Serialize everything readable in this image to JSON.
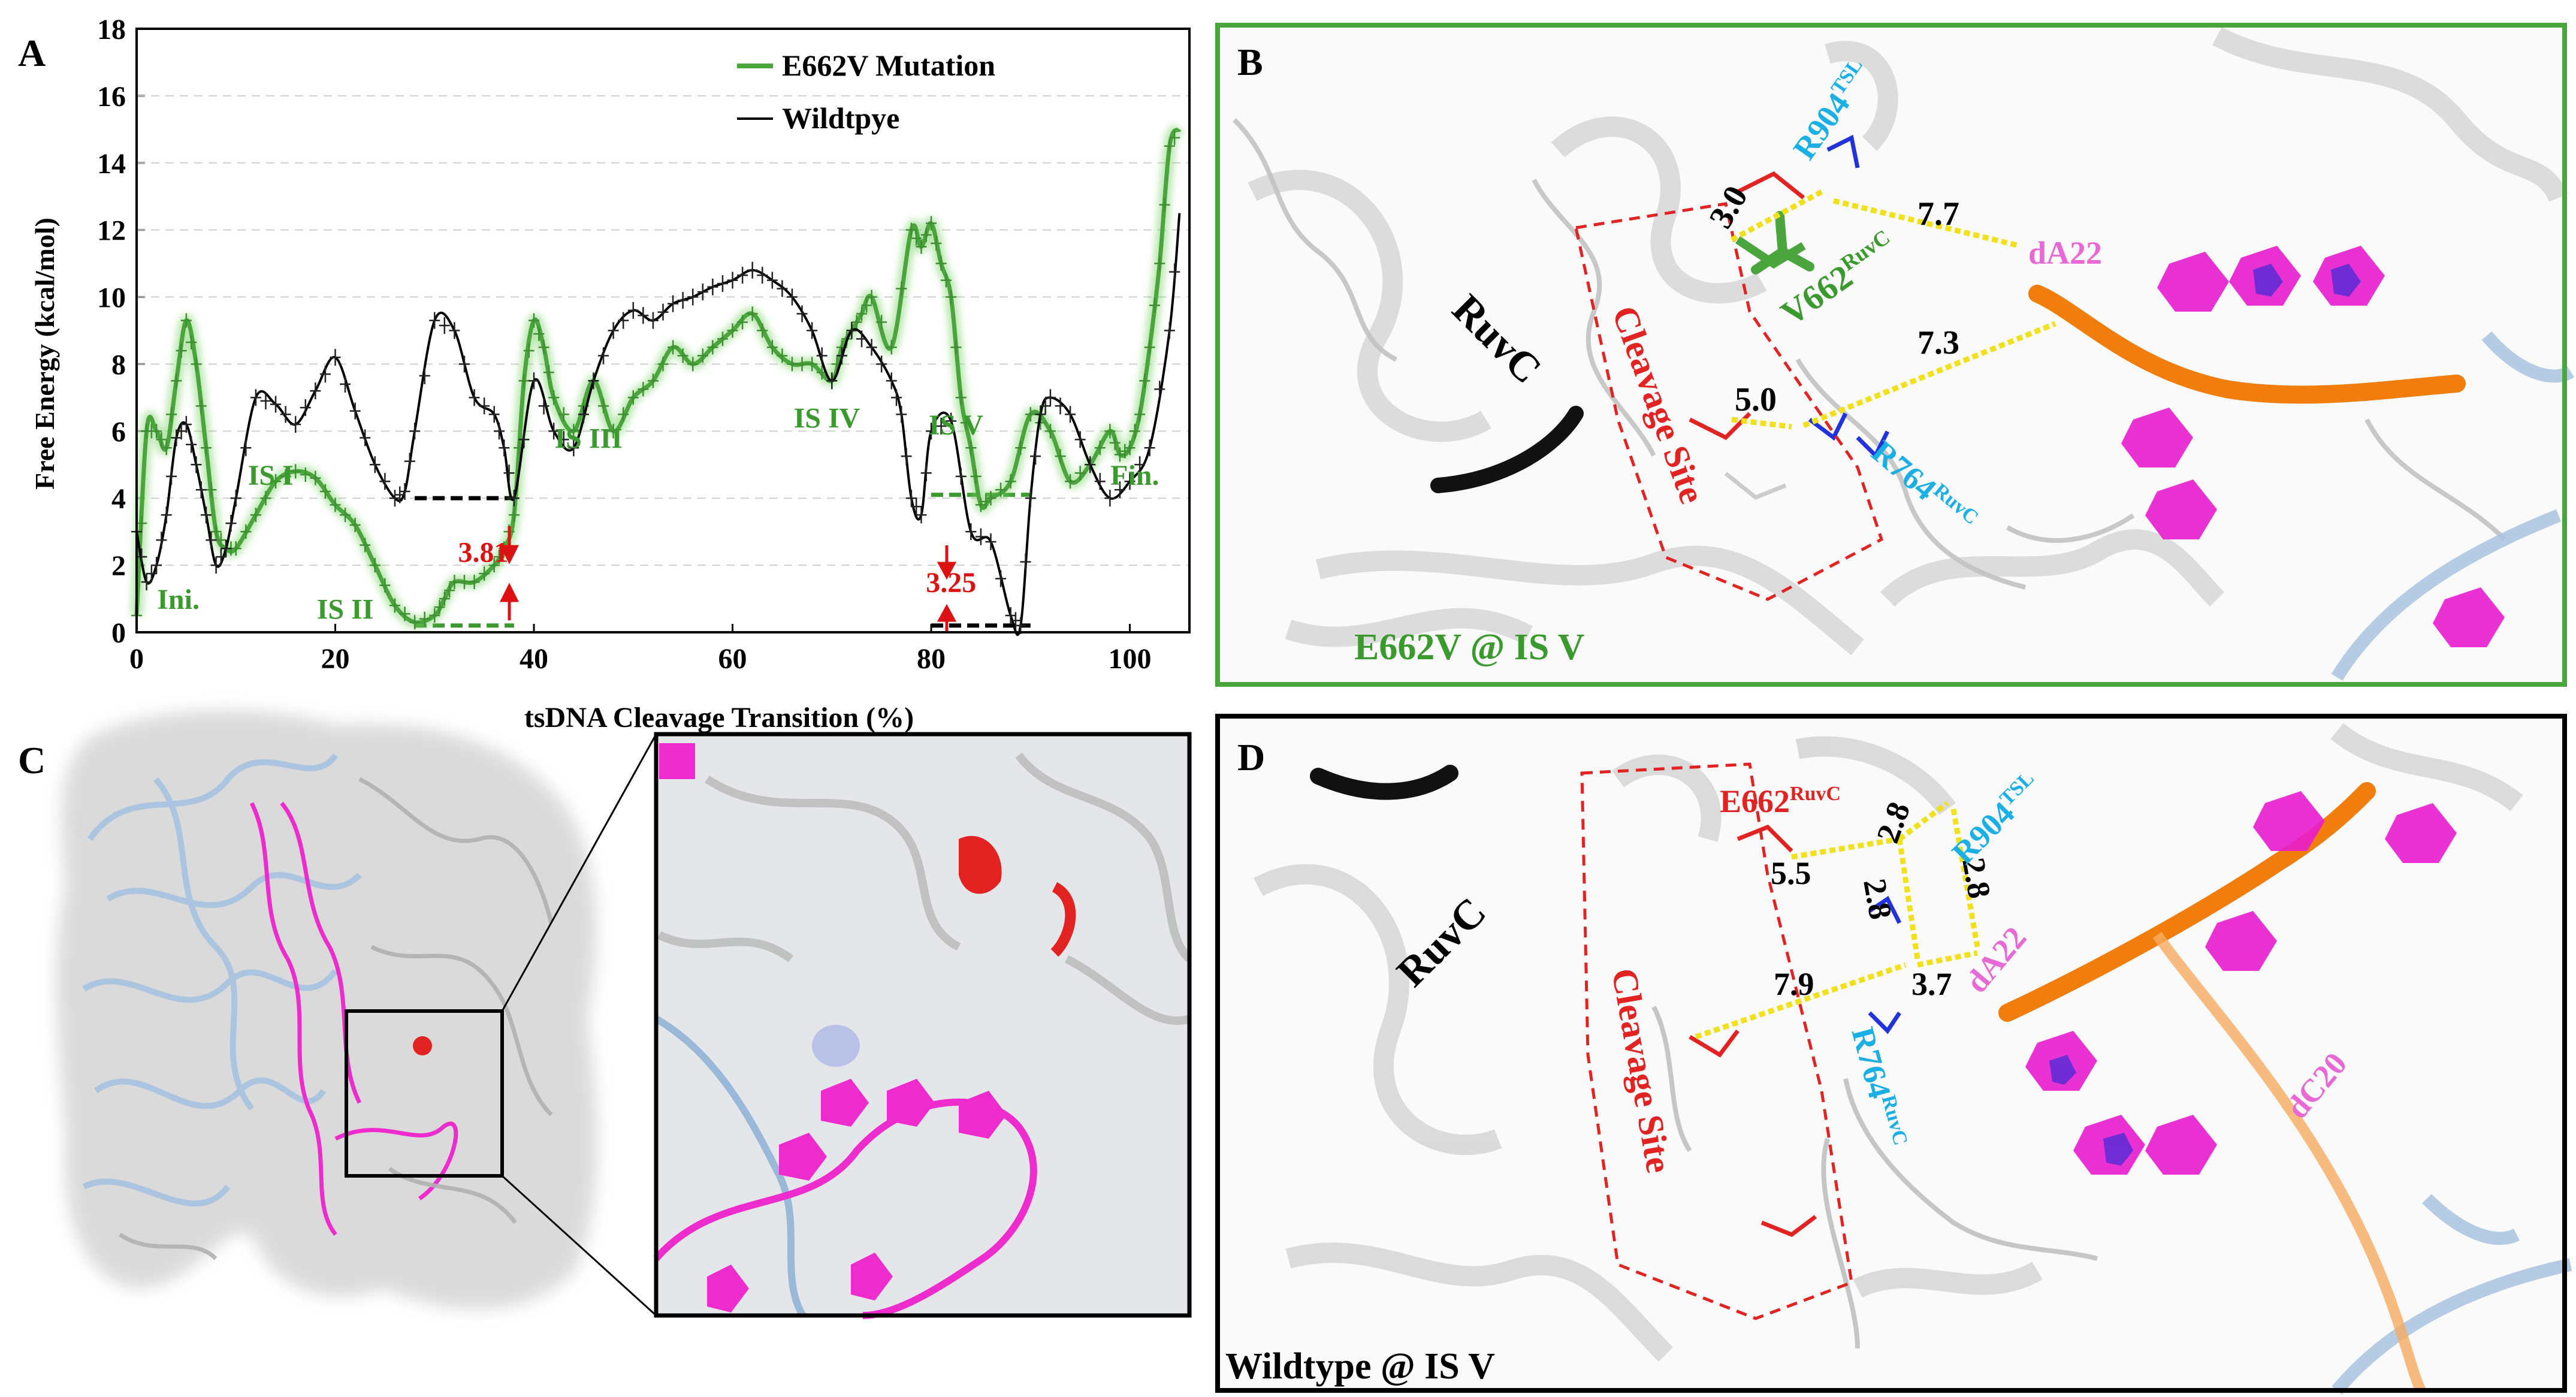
{
  "panel_labels": {
    "a": "A",
    "b": "B",
    "c": "C",
    "d": "D"
  },
  "chart_data": {
    "type": "line",
    "title": "",
    "xlabel": "tsDNA Cleavage Transition (%)",
    "ylabel": "Free Energy (kcal/mol)",
    "xlim": [
      0,
      106
    ],
    "ylim": [
      0,
      18
    ],
    "x_ticks": [
      0,
      20,
      40,
      60,
      80,
      100
    ],
    "y_ticks": [
      0,
      2,
      4,
      6,
      8,
      10,
      12,
      14,
      16,
      18
    ],
    "grid": "horizontal dashed",
    "legend_position": "top-right",
    "series": [
      {
        "name": "E662V Mutation",
        "color": "#4aa63c",
        "x": [
          0,
          1,
          2,
          3,
          4,
          5,
          6,
          7,
          8,
          9,
          10,
          12,
          14,
          16,
          18,
          20,
          22,
          24,
          26,
          28,
          30,
          31,
          32,
          34,
          36,
          37,
          38,
          39,
          40,
          41,
          42,
          44,
          46,
          48,
          50,
          52,
          54,
          56,
          58,
          60,
          62,
          64,
          66,
          68,
          70,
          71,
          72,
          73,
          74,
          76,
          78,
          79,
          80,
          81,
          82,
          83,
          84,
          85,
          86,
          88,
          90,
          92,
          94,
          96,
          98,
          99,
          100,
          101,
          102,
          103,
          104,
          105
        ],
        "values": [
          0.5,
          6,
          6,
          5.5,
          7.5,
          9.3,
          8,
          5.5,
          3,
          2.5,
          2.5,
          3.5,
          4.5,
          4.8,
          4.6,
          3.8,
          3.2,
          2,
          0.8,
          0.3,
          0.5,
          1,
          1.5,
          1.5,
          2,
          2.5,
          3.5,
          7.5,
          9.3,
          8.5,
          7,
          6,
          7.5,
          6,
          7,
          7.5,
          8.5,
          8,
          8.5,
          9,
          9.5,
          8.5,
          8,
          8,
          7.5,
          8.5,
          9,
          9.5,
          10,
          8.5,
          12,
          11.5,
          12.2,
          11,
          10,
          7,
          5.5,
          3.8,
          4,
          4.5,
          6.5,
          6,
          4.5,
          5,
          6,
          5.3,
          5.5,
          6.5,
          8.5,
          11,
          14.5,
          15
        ]
      },
      {
        "name": "Wildtpye",
        "color": "#000000",
        "x": [
          0,
          1,
          2,
          3,
          4,
          5,
          6,
          7,
          8,
          9,
          10,
          12,
          14,
          16,
          18,
          20,
          22,
          24,
          26,
          27,
          28,
          30,
          32,
          34,
          36,
          37,
          38,
          40,
          42,
          44,
          46,
          48,
          50,
          52,
          54,
          56,
          58,
          60,
          62,
          64,
          66,
          68,
          70,
          72,
          74,
          76,
          77,
          78,
          79,
          80,
          82,
          84,
          86,
          88,
          89,
          90,
          91,
          92,
          94,
          96,
          98,
          100,
          102,
          104,
          105
        ],
        "values": [
          3,
          1.5,
          2,
          3.5,
          5.8,
          6.2,
          5,
          3.5,
          2,
          2.5,
          4,
          7,
          6.8,
          6.2,
          7.2,
          8.2,
          6.6,
          5,
          4,
          4.2,
          6,
          9.3,
          9,
          7,
          6.5,
          5.5,
          4,
          7.5,
          6,
          5.5,
          7.5,
          9,
          9.6,
          9.3,
          9.8,
          10,
          10.3,
          10.5,
          10.8,
          10.5,
          10,
          9,
          7.5,
          9,
          8.5,
          7.5,
          6.5,
          4,
          3.5,
          6,
          6.3,
          3,
          2.7,
          0.5,
          0.2,
          4,
          6.5,
          7,
          6.5,
          5,
          4,
          4.5,
          5.5,
          9,
          12.5
        ]
      }
    ],
    "annotations": [
      {
        "text": "Ini.",
        "x": 4.2,
        "y": 0.7,
        "color": "#3a9a2e"
      },
      {
        "text": "IS I",
        "x": 13.5,
        "y": 4.4,
        "color": "#3a9a2e"
      },
      {
        "text": "IS II",
        "x": 21,
        "y": 0.4,
        "color": "#3a9a2e"
      },
      {
        "text": "IS III",
        "x": 45.5,
        "y": 5.5,
        "color": "#3a9a2e"
      },
      {
        "text": "IS IV",
        "x": 69.5,
        "y": 6.1,
        "color": "#3a9a2e"
      },
      {
        "text": "IS V",
        "x": 82.5,
        "y": 5.9,
        "color": "#3a9a2e"
      },
      {
        "text": "Fin.",
        "x": 100.5,
        "y": 4.4,
        "color": "#3a9a2e"
      },
      {
        "text": "3.81",
        "x": 34.9,
        "y": 2.1,
        "color": "#dd1111"
      },
      {
        "text": "3.25",
        "x": 82.0,
        "y": 1.2,
        "color": "#dd1111"
      }
    ]
  },
  "panel_b": {
    "labels": {
      "ruvc": "RuvC",
      "cleavage_site": "Cleavage Site",
      "r904_main": "R904",
      "r904_sup": "TSL",
      "v662_main": "V662",
      "v662_sup": "RuvC",
      "r764_main": "R764",
      "r764_sup": "RuvC",
      "da22": "dA22",
      "state": "E662V @ IS V"
    },
    "distances": {
      "d1": "3.0",
      "d2": "7.7",
      "d3": "7.3",
      "d4": "5.0"
    }
  },
  "panel_d": {
    "labels": {
      "ruvc": "RuvC",
      "cleavage_site": "Cleavage Site",
      "e662_main": "E662",
      "e662_sup": "RuvC",
      "r904_main": "R904",
      "r904_sup": "TSL",
      "r764_main": "R764",
      "r764_sup": "RuvC",
      "da22": "dA22",
      "dc20": "dC20",
      "state": "Wildtype @ IS V"
    },
    "distances": {
      "d1": "2.8",
      "d2": "5.5",
      "d3": "2.8",
      "d4": "2.8",
      "d5": "7.9",
      "d6": "3.7"
    }
  },
  "colors": {
    "green": "#4aa63c",
    "red": "#dd1111",
    "magenta": "#e81ccf",
    "cyan": "#1ab0e6",
    "orange": "#f07d0c",
    "lightblue": "#9ab8d8"
  }
}
